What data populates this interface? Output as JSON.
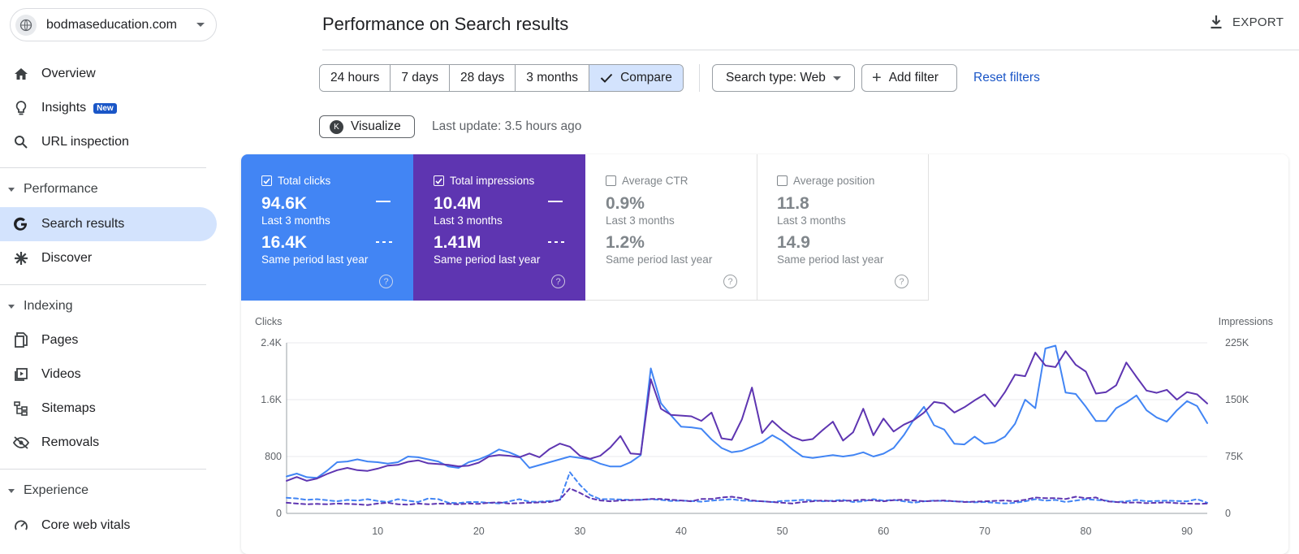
{
  "property": {
    "name": "bodmaseducation.com"
  },
  "nav": {
    "overview": "Overview",
    "insights": "Insights",
    "insights_badge": "New",
    "url_inspection": "URL inspection",
    "performance_section": "Performance",
    "search_results": "Search results",
    "discover": "Discover",
    "indexing_section": "Indexing",
    "pages": "Pages",
    "videos": "Videos",
    "sitemaps": "Sitemaps",
    "removals": "Removals",
    "experience_section": "Experience",
    "core_web_vitals": "Core web vitals"
  },
  "header": {
    "title": "Performance on Search results",
    "export_label": "EXPORT"
  },
  "filters": {
    "ranges": [
      "24 hours",
      "7 days",
      "28 days",
      "3 months",
      "Compare"
    ],
    "selected_range": "Compare",
    "search_type": "Search type: Web",
    "add_filter": "Add filter",
    "reset": "Reset filters"
  },
  "visualize": {
    "label": "Visualize",
    "last_update": "Last update: 3.5 hours ago"
  },
  "metrics": {
    "clicks": {
      "label": "Total clicks",
      "current": "94.6K",
      "current_period": "Last 3 months",
      "previous": "16.4K",
      "previous_period": "Same period last year"
    },
    "impressions": {
      "label": "Total impressions",
      "current": "10.4M",
      "current_period": "Last 3 months",
      "previous": "1.41M",
      "previous_period": "Same period last year"
    },
    "ctr": {
      "label": "Average CTR",
      "current": "0.9%",
      "current_period": "Last 3 months",
      "previous": "1.2%",
      "previous_period": "Same period last year"
    },
    "position": {
      "label": "Average position",
      "current": "11.8",
      "current_period": "Last 3 months",
      "previous": "14.9",
      "previous_period": "Same period last year"
    }
  },
  "colors": {
    "clicks": "#4285f4",
    "impressions": "#5e35b1",
    "accent": "#1a56c7",
    "active_bg": "#d3e3fd"
  },
  "chart_data": {
    "type": "line",
    "ylabel_left": "Clicks",
    "ylabel_right": "Impressions",
    "left_ticks": [
      "0",
      "800",
      "1.6K",
      "2.4K"
    ],
    "left_ylim": [
      0,
      2400
    ],
    "right_ticks": [
      "0",
      "75K",
      "150K",
      "225K"
    ],
    "right_ylim": [
      0,
      225000
    ],
    "x_ticks": [
      "10",
      "20",
      "30",
      "40",
      "50",
      "60",
      "70",
      "80",
      "90"
    ],
    "xlim": [
      1,
      92
    ],
    "series": [
      {
        "name": "Clicks (Last 3 months)",
        "axis": "left",
        "style": "solid",
        "color": "#4285f4",
        "values": [
          520,
          560,
          510,
          500,
          600,
          720,
          730,
          760,
          730,
          720,
          700,
          720,
          800,
          790,
          760,
          730,
          660,
          640,
          720,
          760,
          820,
          900,
          860,
          800,
          640,
          680,
          720,
          760,
          800,
          780,
          760,
          700,
          660,
          660,
          720,
          820,
          2040,
          1550,
          1380,
          1220,
          1210,
          1190,
          1040,
          920,
          860,
          880,
          940,
          1000,
          1100,
          1020,
          900,
          800,
          780,
          800,
          820,
          800,
          820,
          860,
          800,
          840,
          920,
          1100,
          1320,
          1500,
          1240,
          1180,
          980,
          970,
          1080,
          980,
          1000,
          1080,
          1260,
          1600,
          1480,
          2320,
          2360,
          1700,
          1680,
          1500,
          1300,
          1300,
          1480,
          1560,
          1660,
          1450,
          1350,
          1290,
          1450,
          1580,
          1510,
          1270
        ]
      },
      {
        "name": "Impressions (Last 3 months)",
        "axis": "right",
        "style": "solid",
        "color": "#5e35b1",
        "values": [
          43000,
          48000,
          43000,
          46000,
          52000,
          57000,
          60000,
          57000,
          56000,
          59000,
          63000,
          64000,
          68000,
          70000,
          66000,
          65000,
          64000,
          62000,
          63000,
          67000,
          75000,
          77000,
          76000,
          74000,
          79000,
          74000,
          85000,
          92000,
          88000,
          76000,
          72000,
          76000,
          87000,
          102000,
          79000,
          78000,
          177000,
          138000,
          130000,
          129000,
          128000,
          122000,
          133000,
          99000,
          97000,
          124000,
          166000,
          106000,
          122000,
          110000,
          101000,
          96000,
          98000,
          110000,
          121000,
          96000,
          107000,
          138000,
          103000,
          125000,
          108000,
          117000,
          123000,
          133000,
          147000,
          145000,
          133000,
          140000,
          149000,
          157000,
          141000,
          160000,
          183000,
          181000,
          212000,
          195000,
          193000,
          214000,
          196000,
          187000,
          158000,
          160000,
          169000,
          199000,
          180000,
          162000,
          159000,
          163000,
          150000,
          160000,
          157000,
          145000
        ]
      },
      {
        "name": "Clicks (Same period last year)",
        "axis": "left",
        "style": "dashed",
        "color": "#4285f4",
        "values": [
          220,
          210,
          190,
          200,
          185,
          170,
          190,
          180,
          200,
          175,
          160,
          200,
          180,
          160,
          210,
          200,
          150,
          145,
          160,
          160,
          150,
          140,
          170,
          200,
          165,
          165,
          175,
          180,
          580,
          400,
          260,
          200,
          200,
          195,
          190,
          190,
          200,
          190,
          175,
          180,
          175,
          165,
          180,
          190,
          200,
          180,
          175,
          170,
          160,
          175,
          180,
          190,
          185,
          170,
          180,
          190,
          160,
          170,
          200,
          180,
          190,
          170,
          150,
          170,
          180,
          175,
          170,
          165,
          155,
          160,
          150,
          140,
          150,
          170,
          200,
          180,
          190,
          160,
          180,
          200,
          190,
          180,
          160,
          170,
          190,
          170,
          175,
          180,
          175,
          170,
          200,
          150
        ]
      },
      {
        "name": "Impressions (Same period last year)",
        "axis": "right",
        "style": "dashed",
        "color": "#5e35b1",
        "values": [
          14000,
          13000,
          12000,
          12500,
          12000,
          13000,
          12500,
          12000,
          11000,
          13000,
          14000,
          12000,
          11500,
          13000,
          12000,
          13000,
          12500,
          12000,
          13000,
          12500,
          14000,
          14500,
          13000,
          13500,
          14000,
          14500,
          15000,
          18000,
          33000,
          27000,
          20000,
          17000,
          16000,
          17000,
          17500,
          18000,
          19000,
          19000,
          18000,
          17000,
          16000,
          19000,
          19000,
          21000,
          22000,
          20000,
          17000,
          16000,
          15000,
          14000,
          13000,
          15000,
          16000,
          17000,
          16000,
          16500,
          17000,
          18000,
          17000,
          16000,
          17500,
          18000,
          17000,
          16000,
          16500,
          17000,
          16000,
          15000,
          15500,
          16000,
          16500,
          17000,
          16000,
          18000,
          21000,
          20000,
          20000,
          19000,
          22000,
          20000,
          21000,
          16000,
          15000,
          14000,
          14500,
          13500,
          14000,
          14500,
          13500,
          13000,
          12500,
          13000
        ]
      }
    ]
  }
}
